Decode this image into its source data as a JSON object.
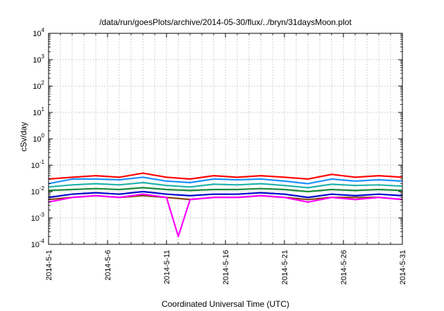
{
  "chart_data": {
    "type": "line",
    "title": "/data/run/goesPlots/archive/2014-05-30/flux/../bryn/31daysMoon.plot",
    "xlabel": "Coordinated Universal Time (UTC)",
    "ylabel": "cSv/day",
    "xscale": "time",
    "yscale": "log",
    "xlim": [
      "2014-05-01",
      "2014-05-31"
    ],
    "ylim": [
      0.0001,
      10000
    ],
    "grid": true,
    "legend": "none",
    "x_tick_labels": [
      "2014-5-1",
      "2014-5-6",
      "2014-5-11",
      "2014-5-16",
      "2014-5-21",
      "2014-5-26",
      "2014-5-31"
    ],
    "y_tick_labels": [
      {
        "base": "10",
        "exp": "-4"
      },
      {
        "base": "10",
        "exp": "-3"
      },
      {
        "base": "10",
        "exp": "-2"
      },
      {
        "base": "10",
        "exp": "-1"
      },
      {
        "base": "10",
        "exp": "0"
      },
      {
        "base": "10",
        "exp": "1"
      },
      {
        "base": "10",
        "exp": "2"
      },
      {
        "base": "10",
        "exp": "3"
      },
      {
        "base": "10",
        "exp": "4"
      }
    ],
    "series": [
      {
        "color": "#ff0000",
        "x": [
          "2014-05-01",
          "2014-05-03",
          "2014-05-05",
          "2014-05-07",
          "2014-05-09",
          "2014-05-11",
          "2014-05-13",
          "2014-05-15",
          "2014-05-17",
          "2014-05-19",
          "2014-05-21",
          "2014-05-23",
          "2014-05-25",
          "2014-05-27",
          "2014-05-29",
          "2014-05-31"
        ],
        "y": [
          0.03,
          0.035,
          0.04,
          0.035,
          0.05,
          0.035,
          0.03,
          0.04,
          0.035,
          0.04,
          0.035,
          0.03,
          0.045,
          0.035,
          0.04,
          0.035
        ]
      },
      {
        "color": "#1e90ff",
        "x": [
          "2014-05-01",
          "2014-05-03",
          "2014-05-05",
          "2014-05-07",
          "2014-05-09",
          "2014-05-11",
          "2014-05-13",
          "2014-05-15",
          "2014-05-17",
          "2014-05-19",
          "2014-05-21",
          "2014-05-23",
          "2014-05-25",
          "2014-05-27",
          "2014-05-29",
          "2014-05-31"
        ],
        "y": [
          0.02,
          0.03,
          0.03,
          0.028,
          0.035,
          0.025,
          0.022,
          0.03,
          0.028,
          0.03,
          0.025,
          0.02,
          0.03,
          0.025,
          0.028,
          0.025
        ]
      },
      {
        "color": "#20b2aa",
        "x": [
          "2014-05-01",
          "2014-05-03",
          "2014-05-05",
          "2014-05-07",
          "2014-05-09",
          "2014-05-11",
          "2014-05-13",
          "2014-05-15",
          "2014-05-17",
          "2014-05-19",
          "2014-05-21",
          "2014-05-23",
          "2014-05-25",
          "2014-05-27",
          "2014-05-29",
          "2014-05-31"
        ],
        "y": [
          0.015,
          0.018,
          0.02,
          0.018,
          0.022,
          0.017,
          0.015,
          0.019,
          0.018,
          0.02,
          0.017,
          0.014,
          0.019,
          0.017,
          0.018,
          0.016
        ]
      },
      {
        "color": "#1a8a3a",
        "x": [
          "2014-05-01",
          "2014-05-03",
          "2014-05-05",
          "2014-05-07",
          "2014-05-09",
          "2014-05-11",
          "2014-05-13",
          "2014-05-15",
          "2014-05-17",
          "2014-05-19",
          "2014-05-21",
          "2014-05-23",
          "2014-05-25",
          "2014-05-27",
          "2014-05-29",
          "2014-05-31"
        ],
        "y": [
          0.011,
          0.012,
          0.013,
          0.012,
          0.014,
          0.012,
          0.011,
          0.012,
          0.012,
          0.013,
          0.012,
          0.01,
          0.012,
          0.011,
          0.012,
          0.011
        ]
      },
      {
        "color": "#0000cd",
        "x": [
          "2014-05-01",
          "2014-05-03",
          "2014-05-05",
          "2014-05-07",
          "2014-05-09",
          "2014-05-11",
          "2014-05-13",
          "2014-05-15",
          "2014-05-17",
          "2014-05-19",
          "2014-05-21",
          "2014-05-23",
          "2014-05-25",
          "2014-05-27",
          "2014-05-29",
          "2014-05-31"
        ],
        "y": [
          0.006,
          0.008,
          0.009,
          0.008,
          0.01,
          0.008,
          0.007,
          0.008,
          0.008,
          0.009,
          0.008,
          0.006,
          0.008,
          0.007,
          0.008,
          0.007
        ]
      },
      {
        "color": "#8b4513",
        "x": [
          "2014-05-01",
          "2014-05-03",
          "2014-05-05",
          "2014-05-07",
          "2014-05-09",
          "2014-05-11",
          "2014-05-13",
          "2014-05-15",
          "2014-05-17",
          "2014-05-19",
          "2014-05-21",
          "2014-05-23",
          "2014-05-25",
          "2014-05-27",
          "2014-05-29",
          "2014-05-31"
        ],
        "y": [
          0.005,
          0.006,
          0.007,
          0.006,
          0.007,
          0.006,
          0.005,
          0.006,
          0.006,
          0.007,
          0.006,
          0.005,
          0.006,
          0.006,
          0.006,
          0.005
        ]
      },
      {
        "color": "#ff00ff",
        "x": [
          "2014-05-01",
          "2014-05-03",
          "2014-05-05",
          "2014-05-07",
          "2014-05-09",
          "2014-05-11",
          "2014-05-12",
          "2014-05-13",
          "2014-05-15",
          "2014-05-17",
          "2014-05-19",
          "2014-05-21",
          "2014-05-23",
          "2014-05-25",
          "2014-05-27",
          "2014-05-29",
          "2014-05-31"
        ],
        "y": [
          0.004,
          0.006,
          0.007,
          0.006,
          0.008,
          0.006,
          0.0002,
          0.005,
          0.006,
          0.006,
          0.007,
          0.006,
          0.004,
          0.006,
          0.005,
          0.006,
          0.005
        ]
      }
    ]
  }
}
